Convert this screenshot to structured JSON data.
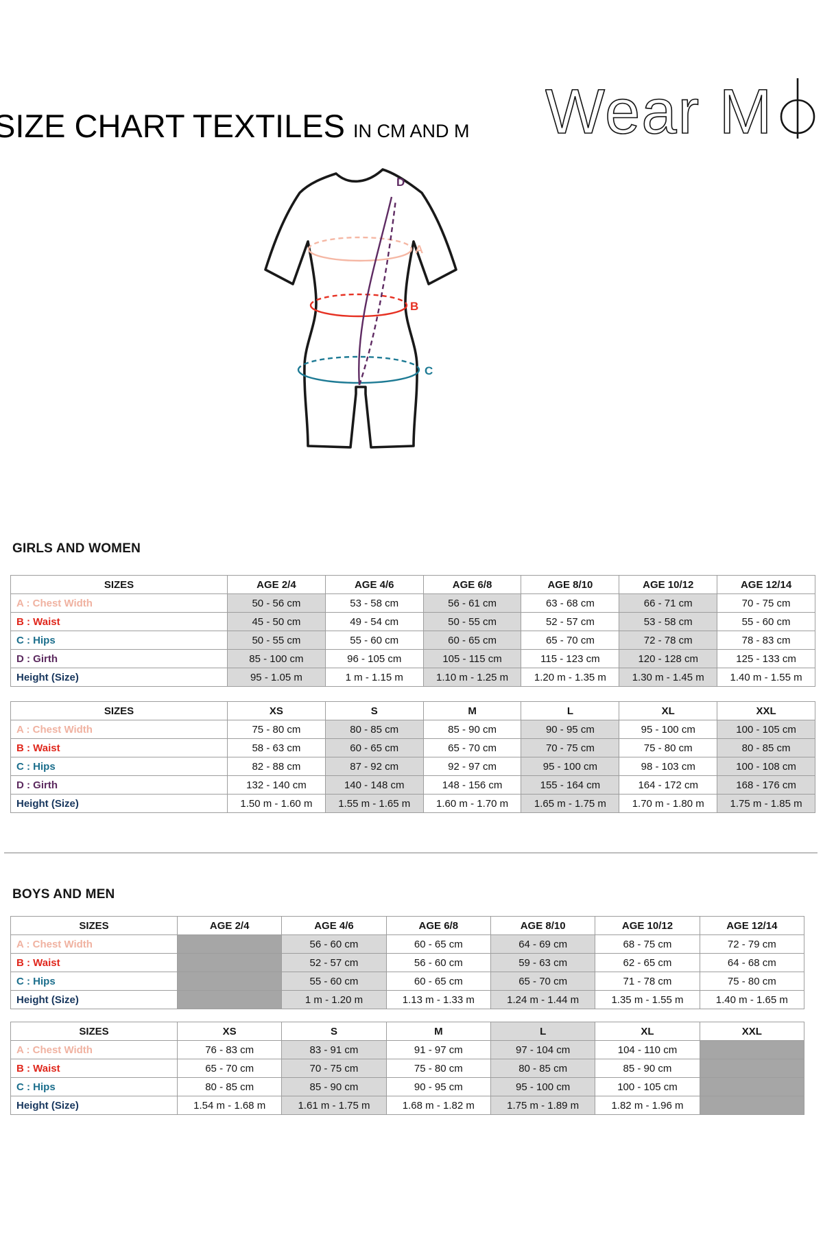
{
  "header": {
    "title": "SIZE CHART TEXTILES",
    "subtitle": "IN CM AND M",
    "brand_prefix": "Wear M",
    "brand_suffix": "i"
  },
  "diagram": {
    "labels": {
      "a": "A",
      "b": "B",
      "c": "C",
      "d": "D"
    },
    "colors": {
      "a": "#f5b7a4",
      "b": "#e63123",
      "c": "#1d7a94",
      "d": "#5e2a62"
    }
  },
  "style": {
    "shade_color": "#d9d9d9",
    "block_color": "#a6a6a6",
    "label_colors": {
      "chest": "#f0b2a1",
      "waist": "#e0271c",
      "hips": "#1b6e8c",
      "girth": "#5c2a5f",
      "height": "#17365d"
    }
  },
  "sections": [
    {
      "heading": "GIRLS AND WOMEN",
      "tables": [
        {
          "columns": [
            "SIZES",
            "AGE 2/4",
            "AGE 4/6",
            "AGE 6/8",
            "AGE 8/10",
            "AGE 10/12",
            "AGE 12/14"
          ],
          "shaded_columns": [
            1,
            3,
            5
          ],
          "shaded_header_columns": [],
          "blocked_columns": [],
          "rows": [
            {
              "label": "A : Chest Width",
              "color": "#f0b2a1",
              "cells": [
                "50 - 56 cm",
                "53 - 58 cm",
                "56 - 61 cm",
                "63 - 68 cm",
                "66 - 71 cm",
                "70 - 75 cm"
              ]
            },
            {
              "label": "B : Waist",
              "color": "#e0271c",
              "cells": [
                "45 - 50 cm",
                "49 - 54 cm",
                "50 - 55 cm",
                "52 - 57 cm",
                "53 - 58 cm",
                "55 - 60 cm"
              ]
            },
            {
              "label": "C : Hips",
              "color": "#1b6e8c",
              "cells": [
                "50 - 55 cm",
                "55 - 60 cm",
                "60 - 65 cm",
                "65 - 70 cm",
                "72 - 78 cm",
                "78 - 83 cm"
              ]
            },
            {
              "label": "D : Girth",
              "color": "#5c2a5f",
              "cells": [
                "85 - 100 cm",
                "96 - 105 cm",
                "105 - 115 cm",
                "115 - 123 cm",
                "120 - 128 cm",
                "125 - 133 cm"
              ]
            },
            {
              "label": "Height (Size)",
              "color": "#17365d",
              "cells": [
                "95 - 1.05 m",
                "1 m - 1.15 m",
                "1.10 m - 1.25 m",
                "1.20 m - 1.35 m",
                "1.30 m - 1.45 m",
                "1.40 m - 1.55 m"
              ]
            }
          ]
        },
        {
          "columns": [
            "SIZES",
            "XS",
            "S",
            "M",
            "L",
            "XL",
            "XXL"
          ],
          "shaded_columns": [
            2,
            4,
            6
          ],
          "shaded_header_columns": [],
          "blocked_columns": [],
          "rows": [
            {
              "label": "A : Chest Width",
              "color": "#f0b2a1",
              "cells": [
                "75 - 80 cm",
                "80 - 85 cm",
                "85 - 90 cm",
                "90 - 95 cm",
                "95 - 100 cm",
                "100 - 105 cm"
              ]
            },
            {
              "label": "B : Waist",
              "color": "#e0271c",
              "cells": [
                "58 - 63 cm",
                "60 - 65 cm",
                "65 - 70 cm",
                "70 - 75 cm",
                "75 - 80 cm",
                "80 - 85 cm"
              ]
            },
            {
              "label": "C : Hips",
              "color": "#1b6e8c",
              "cells": [
                "82 - 88 cm",
                "87 - 92 cm",
                "92 - 97 cm",
                "95 - 100 cm",
                "98 - 103 cm",
                "100 - 108 cm"
              ]
            },
            {
              "label": "D : Girth",
              "color": "#5c2a5f",
              "cells": [
                "132 - 140 cm",
                "140 - 148 cm",
                "148 - 156 cm",
                "155 - 164 cm",
                "164 - 172 cm",
                "168 - 176 cm"
              ]
            },
            {
              "label": "Height (Size)",
              "color": "#17365d",
              "cells": [
                "1.50 m - 1.60 m",
                "1.55 m - 1.65 m",
                "1.60 m - 1.70 m",
                "1.65 m - 1.75 m",
                "1.70 m - 1.80 m",
                "1.75 m - 1.85 m"
              ]
            }
          ]
        }
      ]
    },
    {
      "heading": "BOYS AND MEN",
      "tables": [
        {
          "columns": [
            "SIZES",
            "AGE 2/4",
            "AGE 4/6",
            "AGE 6/8",
            "AGE 8/10",
            "AGE 10/12",
            "AGE 12/14"
          ],
          "shaded_columns": [
            2,
            4
          ],
          "shaded_header_columns": [],
          "blocked_columns": [
            1
          ],
          "rows": [
            {
              "label": "A : Chest Width",
              "color": "#f0b2a1",
              "cells": [
                "",
                "56 - 60 cm",
                "60 - 65 cm",
                "64 - 69 cm",
                "68 - 75 cm",
                "72 - 79 cm"
              ]
            },
            {
              "label": "B : Waist",
              "color": "#e0271c",
              "cells": [
                "",
                "52 - 57 cm",
                "56 - 60 cm",
                "59 - 63 cm",
                "62 - 65 cm",
                "64 - 68 cm"
              ]
            },
            {
              "label": "C : Hips",
              "color": "#1b6e8c",
              "cells": [
                "",
                "55 - 60 cm",
                "60 - 65 cm",
                "65 - 70 cm",
                "71 - 78 cm",
                "75 - 80 cm"
              ]
            },
            {
              "label": "Height (Size)",
              "color": "#17365d",
              "cells": [
                "",
                "1 m - 1.20 m",
                "1.13 m - 1.33 m",
                "1.24 m - 1.44 m",
                "1.35 m - 1.55 m",
                "1.40 m - 1.65 m"
              ]
            }
          ]
        },
        {
          "columns": [
            "SIZES",
            "XS",
            "S",
            "M",
            "L",
            "XL",
            "XXL"
          ],
          "shaded_columns": [
            2,
            4
          ],
          "shaded_header_columns": [
            4
          ],
          "blocked_columns": [
            6
          ],
          "rows": [
            {
              "label": "A : Chest Width",
              "color": "#f0b2a1",
              "cells": [
                "76 - 83 cm",
                "83 - 91 cm",
                "91 - 97 cm",
                "97 - 104 cm",
                "104 - 110 cm",
                ""
              ]
            },
            {
              "label": "B : Waist",
              "color": "#e0271c",
              "cells": [
                "65 - 70 cm",
                "70 - 75 cm",
                "75 - 80 cm",
                "80 - 85 cm",
                "85 - 90 cm",
                ""
              ]
            },
            {
              "label": "C : Hips",
              "color": "#1b6e8c",
              "cells": [
                "80 - 85 cm",
                "85 - 90 cm",
                "90 - 95 cm",
                "95 - 100 cm",
                "100 - 105 cm",
                ""
              ]
            },
            {
              "label": "Height (Size)",
              "color": "#17365d",
              "cells": [
                "1.54 m - 1.68 m",
                "1.61 m - 1.75 m",
                "1.68 m - 1.82 m",
                "1.75 m - 1.89 m",
                "1.82 m - 1.96 m",
                ""
              ]
            }
          ]
        }
      ]
    }
  ]
}
